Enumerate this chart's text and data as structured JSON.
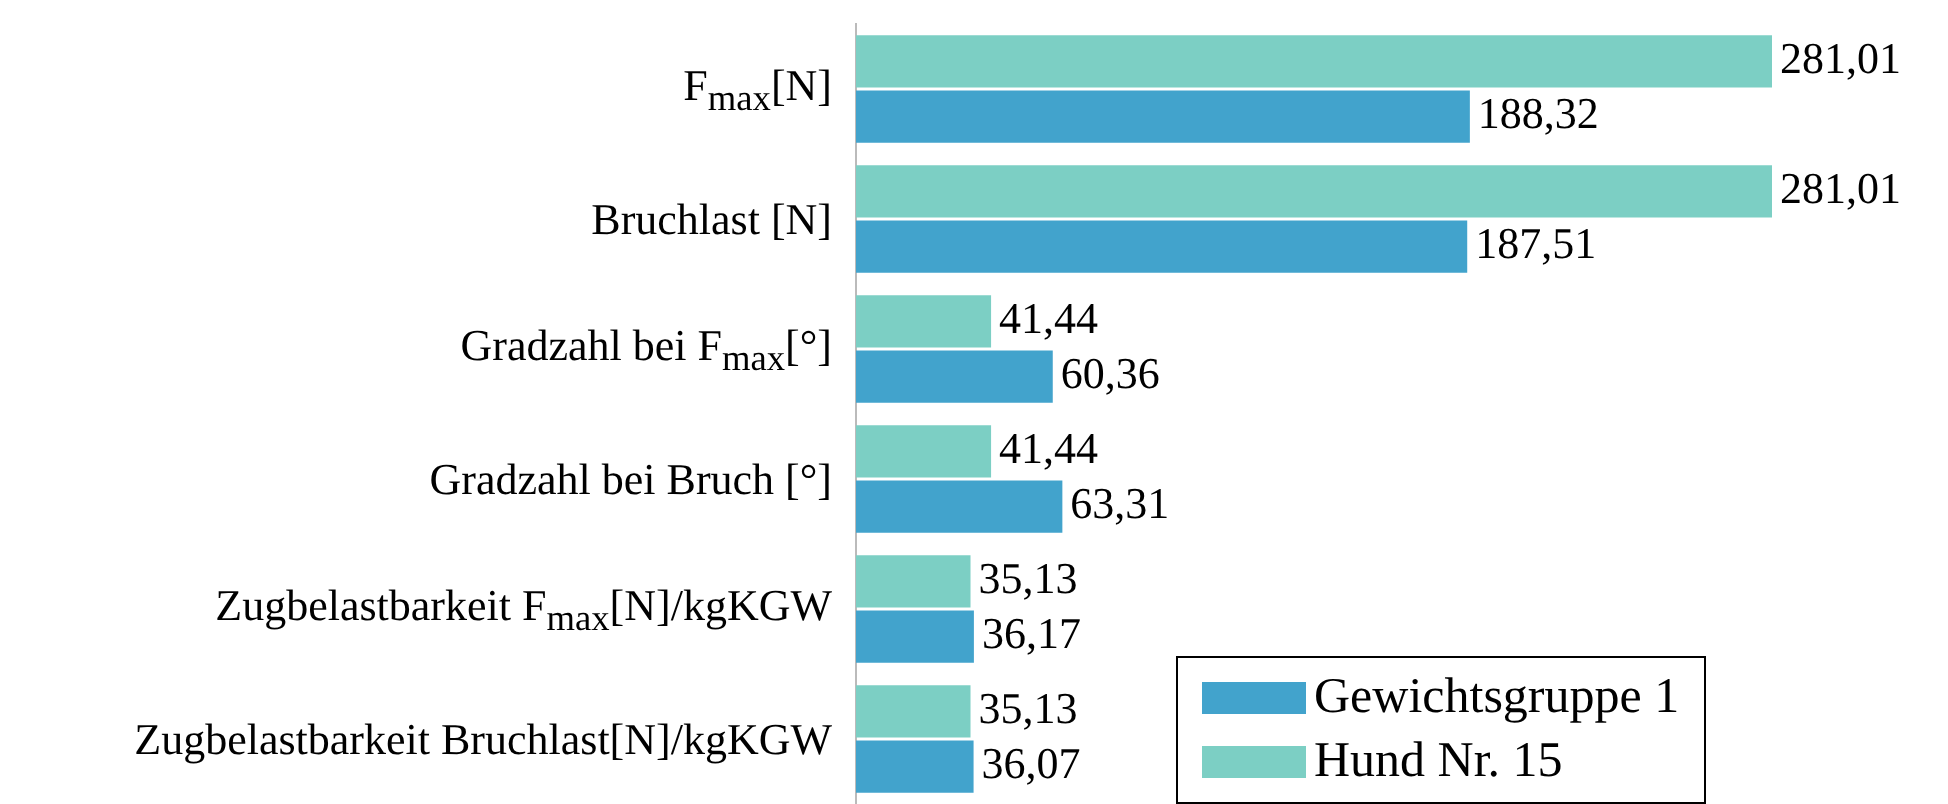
{
  "chart_data": {
    "type": "bar",
    "orientation": "horizontal",
    "categories": [
      "F$_{max}$[N]",
      "Bruchlast [N]",
      "Gradzahl bei F$_{max}$[°]",
      "Gradzahl bei Bruch [°]",
      "Zugbelastbarkeit F$_{max}$[N]/kgKGW",
      "Zugbelastbarkeit Bruchlast[N]/kgKGW"
    ],
    "series": [
      {
        "name": "Hund Nr. 15",
        "color": "#7ccfc4",
        "values": [
          281.01,
          281.01,
          41.44,
          41.44,
          35.13,
          35.13
        ],
        "value_labels": [
          "281,01",
          "281,01",
          "41,44",
          "41,44",
          "35,13",
          "35,13"
        ]
      },
      {
        "name": "Gewichtsgruppe 1",
        "color": "#42a3cc",
        "values": [
          188.32,
          187.51,
          60.36,
          63.31,
          36.17,
          36.07
        ],
        "value_labels": [
          "188,32",
          "187,51",
          "60,36",
          "63,31",
          "36,17",
          "36,07"
        ]
      }
    ],
    "legend": "bottom right"
  }
}
